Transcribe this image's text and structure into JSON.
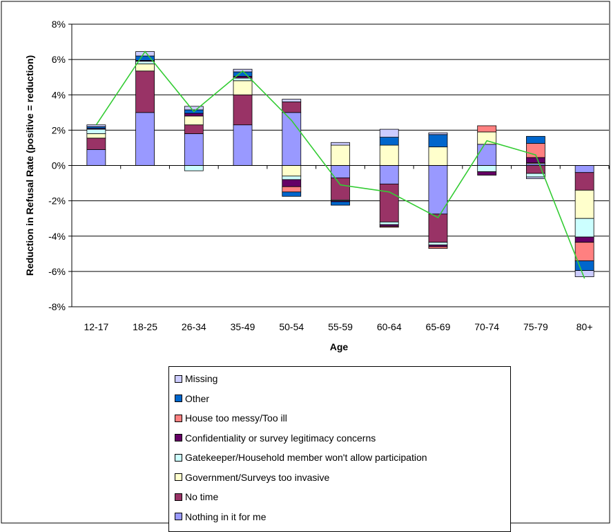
{
  "chart_data": {
    "type": "bar",
    "stacked": true,
    "xlabel": "Age",
    "ylabel": "Reduction in Refusal Rate (positive = reduction)",
    "ylim": [
      -8,
      8
    ],
    "yticks": [
      -8,
      -6,
      -4,
      -2,
      0,
      2,
      4,
      6,
      8
    ],
    "ytick_labels": [
      "-8%",
      "-6%",
      "-4%",
      "-2%",
      "0%",
      "2%",
      "4%",
      "6%",
      "8%"
    ],
    "grid": true,
    "legend_position": "bottom",
    "categories": [
      "12-17",
      "18-25",
      "26-34",
      "35-49",
      "50-54",
      "55-59",
      "60-64",
      "65-69",
      "70-74",
      "75-79",
      "80+"
    ],
    "series": [
      {
        "name": "Nothing in it for me",
        "color": "#9999ff",
        "values": [
          0.9,
          3.0,
          1.8,
          2.3,
          3.0,
          -0.7,
          -1.05,
          -2.75,
          1.2,
          0.1,
          -0.4
        ]
      },
      {
        "name": "No time",
        "color": "#993366",
        "values": [
          0.65,
          2.35,
          0.5,
          1.7,
          0.6,
          -1.25,
          -2.15,
          -1.6,
          0.0,
          -0.45,
          -1.0
        ]
      },
      {
        "name": "Government/Surveys too invasive",
        "color": "#ffffcc",
        "values": [
          0.25,
          0.4,
          0.5,
          0.8,
          -0.6,
          1.15,
          1.15,
          1.05,
          0.7,
          0.05,
          -1.6
        ]
      },
      {
        "name": "Gatekeeper/Household member won't allow participation",
        "color": "#ccffff",
        "values": [
          0.25,
          0.15,
          -0.3,
          0.15,
          -0.2,
          -0.05,
          -0.15,
          -0.15,
          -0.35,
          -0.2,
          -1.05
        ]
      },
      {
        "name": "Confidentiality or survey legitimacy concerns",
        "color": "#660066",
        "values": [
          0.05,
          0.05,
          0.15,
          0.1,
          -0.4,
          -0.05,
          -0.1,
          -0.1,
          -0.2,
          0.3,
          -0.3
        ]
      },
      {
        "name": "House too messy/Too ill",
        "color": "#ff8080",
        "values": [
          0.0,
          0.0,
          0.0,
          0.0,
          -0.3,
          0.0,
          -0.05,
          -0.1,
          0.35,
          0.8,
          -1.05
        ]
      },
      {
        "name": "Other",
        "color": "#0066cc",
        "values": [
          0.1,
          0.25,
          0.2,
          0.25,
          -0.25,
          -0.2,
          0.45,
          0.7,
          0.0,
          0.4,
          -0.55
        ]
      },
      {
        "name": "Missing",
        "color": "#ccccff",
        "values": [
          0.1,
          0.25,
          0.2,
          0.15,
          0.15,
          0.15,
          0.45,
          0.1,
          0.0,
          -0.1,
          -0.35
        ]
      }
    ],
    "net_line": {
      "color": "#33cc33",
      "values": [
        2.3,
        6.45,
        3.05,
        5.35,
        2.55,
        -1.1,
        -1.5,
        -2.95,
        1.4,
        0.6,
        -6.4
      ]
    }
  }
}
